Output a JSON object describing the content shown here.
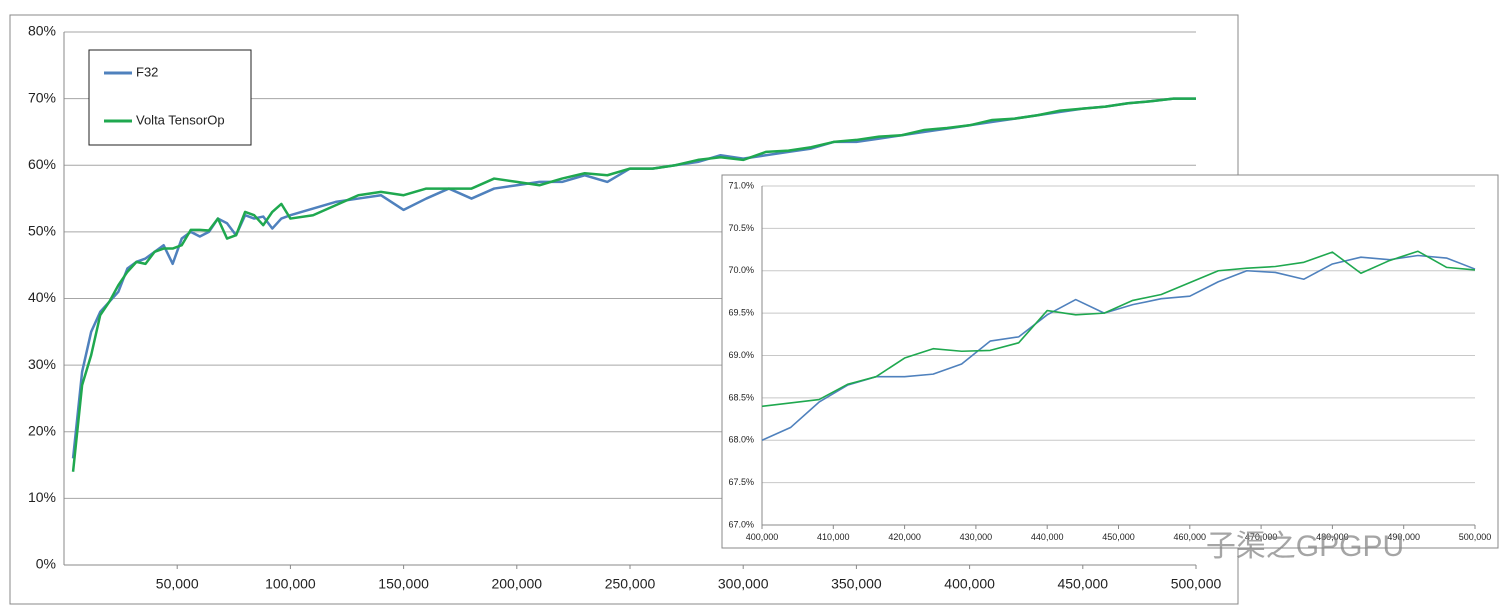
{
  "chart_data": [
    {
      "type": "line",
      "x": [
        4000,
        8000,
        12000,
        16000,
        20000,
        24000,
        28000,
        32000,
        36000,
        40000,
        44000,
        48000,
        52000,
        56000,
        60000,
        64000,
        68000,
        72000,
        76000,
        80000,
        84000,
        88000,
        92000,
        96000,
        100000,
        110000,
        120000,
        130000,
        140000,
        150000,
        160000,
        170000,
        180000,
        190000,
        200000,
        210000,
        220000,
        230000,
        240000,
        250000,
        260000,
        270000,
        280000,
        290000,
        300000,
        310000,
        320000,
        330000,
        340000,
        350000,
        360000,
        370000,
        380000,
        390000,
        400000,
        410000,
        420000,
        430000,
        440000,
        450000,
        460000,
        470000,
        480000,
        490000,
        500000
      ],
      "series": [
        {
          "name": "F32",
          "color": "#4f81bd",
          "values": [
            16,
            29,
            35,
            38,
            39.5,
            41,
            44.5,
            45.5,
            46,
            47,
            48,
            45.2,
            49,
            50,
            49.3,
            50,
            52,
            51.3,
            49.5,
            52.5,
            52,
            52.3,
            50.5,
            52,
            52.5,
            53.5,
            54.5,
            55,
            55.5,
            53.3,
            55,
            56.5,
            55,
            56.5,
            57,
            57.5,
            57.5,
            58.5,
            57.5,
            59.5,
            59.5,
            60,
            60.5,
            61.5,
            61,
            61.5,
            62,
            62.5,
            63.5,
            63.5,
            64,
            64.5,
            65,
            65.5,
            66,
            66.5,
            67,
            67.5,
            68,
            68.5,
            68.8,
            69.3,
            69.6,
            70,
            70
          ]
        },
        {
          "name": "Volta TensorOp",
          "color": "#1fa84f",
          "values": [
            14,
            27,
            31.5,
            37.5,
            39.5,
            42,
            44,
            45.5,
            45.2,
            47,
            47.5,
            47.5,
            48,
            50.3,
            50.3,
            50.2,
            52,
            49,
            49.5,
            53,
            52.5,
            51,
            53,
            54.2,
            52,
            52.5,
            54,
            55.5,
            56,
            55.5,
            56.5,
            56.5,
            56.5,
            58,
            57.5,
            57,
            58,
            58.8,
            58.5,
            59.5,
            59.5,
            60,
            60.8,
            61.2,
            60.8,
            62,
            62.2,
            62.7,
            63.5,
            63.8,
            64.3,
            64.5,
            65.3,
            65.6,
            66,
            66.8,
            67,
            67.5,
            68.2,
            68.5,
            68.8,
            69.3,
            69.6,
            70,
            70
          ]
        }
      ],
      "xlim": [
        0,
        500000
      ],
      "xticks": [
        {
          "value": 50000,
          "label": "50,000"
        },
        {
          "value": 100000,
          "label": "100,000"
        },
        {
          "value": 150000,
          "label": "150,000"
        },
        {
          "value": 200000,
          "label": "200,000"
        },
        {
          "value": 250000,
          "label": "250,000"
        },
        {
          "value": 300000,
          "label": "300,000"
        },
        {
          "value": 350000,
          "label": "350,000"
        },
        {
          "value": 400000,
          "label": "400,000"
        },
        {
          "value": 450000,
          "label": "450,000"
        },
        {
          "value": 500000,
          "label": "500,000"
        }
      ],
      "ylim": [
        0,
        80
      ],
      "yticks": [
        {
          "value": 0,
          "label": "0%"
        },
        {
          "value": 10,
          "label": "10%"
        },
        {
          "value": 20,
          "label": "20%"
        },
        {
          "value": 30,
          "label": "30%"
        },
        {
          "value": 40,
          "label": "40%"
        },
        {
          "value": 50,
          "label": "50%"
        },
        {
          "value": 60,
          "label": "60%"
        },
        {
          "value": 70,
          "label": "70%"
        },
        {
          "value": 80,
          "label": "80%"
        }
      ],
      "grid": true,
      "legend": "top-left"
    },
    {
      "type": "line",
      "x": [
        400000,
        404000,
        408000,
        412000,
        416000,
        420000,
        424000,
        428000,
        432000,
        436000,
        440000,
        444000,
        448000,
        452000,
        456000,
        460000,
        464000,
        468000,
        472000,
        476000,
        480000,
        484000,
        488000,
        492000,
        496000,
        500000
      ],
      "series": [
        {
          "name": "F32",
          "color": "#4f81bd",
          "values": [
            68.0,
            68.15,
            68.45,
            68.65,
            68.75,
            68.75,
            68.78,
            68.9,
            69.17,
            69.22,
            69.48,
            69.66,
            69.5,
            69.6,
            69.67,
            69.7,
            69.87,
            70.0,
            69.98,
            69.9,
            70.08,
            70.16,
            70.13,
            70.18,
            70.15,
            70.02
          ]
        },
        {
          "name": "Volta TensorOp",
          "color": "#1fa84f",
          "values": [
            68.4,
            68.44,
            68.48,
            68.66,
            68.75,
            68.97,
            69.08,
            69.05,
            69.06,
            69.15,
            69.53,
            69.48,
            69.5,
            69.65,
            69.72,
            69.86,
            70.0,
            70.03,
            70.05,
            70.1,
            70.22,
            69.97,
            70.12,
            70.23,
            70.04,
            70.01
          ]
        }
      ],
      "xlim": [
        400000,
        500000
      ],
      "xticks": [
        {
          "value": 400000,
          "label": "400,000"
        },
        {
          "value": 410000,
          "label": "410,000"
        },
        {
          "value": 420000,
          "label": "420,000"
        },
        {
          "value": 430000,
          "label": "430,000"
        },
        {
          "value": 440000,
          "label": "440,000"
        },
        {
          "value": 450000,
          "label": "450,000"
        },
        {
          "value": 460000,
          "label": "460,000"
        },
        {
          "value": 470000,
          "label": "470,000"
        },
        {
          "value": 480000,
          "label": "480,000"
        },
        {
          "value": 490000,
          "label": "490,000"
        },
        {
          "value": 500000,
          "label": "500,000"
        }
      ],
      "ylim": [
        67,
        71
      ],
      "yticks": [
        {
          "value": 67,
          "label": "67.0%"
        },
        {
          "value": 67.5,
          "label": "67.5%"
        },
        {
          "value": 68,
          "label": "68.0%"
        },
        {
          "value": 68.5,
          "label": "68.5%"
        },
        {
          "value": 69,
          "label": "69.0%"
        },
        {
          "value": 69.5,
          "label": "69.5%"
        },
        {
          "value": 70,
          "label": "70.0%"
        },
        {
          "value": 70.5,
          "label": "70.5%"
        },
        {
          "value": 71,
          "label": "71.0%"
        }
      ],
      "grid": true,
      "legend": "none"
    }
  ],
  "watermark": "子渠之GPGPU"
}
